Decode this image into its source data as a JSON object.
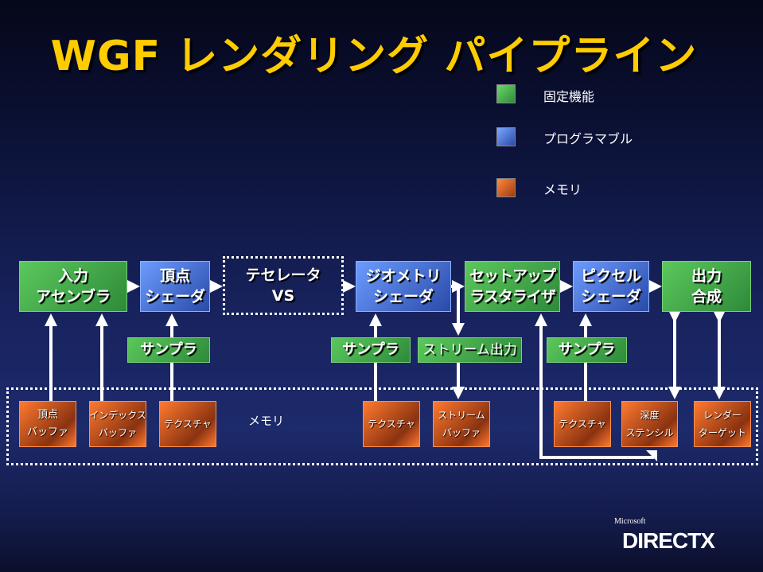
{
  "title": "WGF レンダリング パイプライン",
  "legend": [
    {
      "label": "固定機能",
      "color": "#4cb84c"
    },
    {
      "label": "プログラマブル",
      "color": "#5a8cf0"
    },
    {
      "label": "メモリ",
      "color": "#f06a28"
    }
  ],
  "stages": [
    {
      "line1": "入力",
      "line2": "アセンブラ",
      "type": "fixed"
    },
    {
      "line1": "頂点",
      "line2": "シェーダ",
      "type": "programmable"
    },
    {
      "line1": "テセレータ",
      "line2": "VS",
      "type": "optional"
    },
    {
      "line1": "ジオメトリ",
      "line2": "シェーダ",
      "type": "programmable"
    },
    {
      "line1": "セットアップ",
      "line2": "ラスタライザ",
      "type": "fixed"
    },
    {
      "line1": "ピクセル",
      "line2": "シェーダ",
      "type": "programmable"
    },
    {
      "line1": "出力",
      "line2": "合成",
      "type": "fixed"
    }
  ],
  "units": [
    "サンプラ",
    "サンプラ",
    "ストリーム出力",
    "サンプラ"
  ],
  "memory": {
    "label": "メモリ",
    "resources": [
      {
        "line1": "頂点",
        "line2": "バッファ"
      },
      {
        "line1": "インデックス",
        "line2": "バッファ"
      },
      {
        "line1": "テクスチャ",
        "line2": ""
      },
      {
        "line1": "テクスチャ",
        "line2": ""
      },
      {
        "line1": "ストリーム",
        "line2": "バッファ"
      },
      {
        "line1": "テクスチャ",
        "line2": ""
      },
      {
        "line1": "深度",
        "line2": "ステンシル"
      },
      {
        "line1": "レンダー",
        "line2": "ターゲット"
      }
    ]
  },
  "logo": {
    "brand": "Microsoft",
    "product": "DIRECTX"
  }
}
